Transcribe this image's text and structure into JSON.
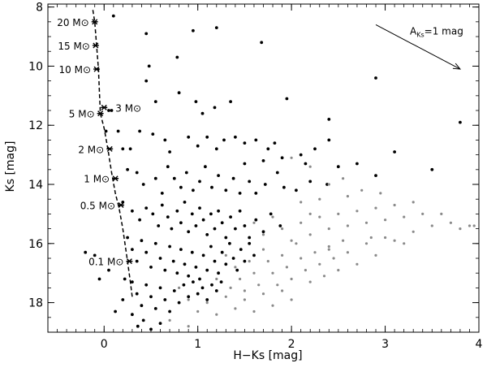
{
  "chart_data": {
    "type": "scatter",
    "title": "",
    "xlabel": "H−Ks [mag]",
    "ylabel": "Ks [mag]",
    "xlim": [
      -0.6,
      4.0
    ],
    "ylim": [
      19.0,
      7.9
    ],
    "y_inverted": true,
    "grid": false,
    "x_ticks": [
      {
        "value": 0,
        "label": "0"
      },
      {
        "value": 1,
        "label": "1"
      },
      {
        "value": 2,
        "label": "2"
      },
      {
        "value": 3,
        "label": "3"
      },
      {
        "value": 4,
        "label": "4"
      }
    ],
    "y_ticks": [
      {
        "value": 8,
        "label": "8"
      },
      {
        "value": 10,
        "label": "10"
      },
      {
        "value": 12,
        "label": "12"
      },
      {
        "value": 14,
        "label": "14"
      },
      {
        "value": 16,
        "label": "16"
      },
      {
        "value": 18,
        "label": "18"
      }
    ],
    "colors": {
      "black_points": "#000000",
      "grey_points": "#8a8a8a",
      "isochrone": "#000000"
    },
    "isochrone": {
      "style": "dashed",
      "x": [
        -0.12,
        -0.1,
        -0.08,
        -0.06,
        -0.04,
        0.0,
        0.04,
        0.08,
        0.12,
        0.16,
        0.2,
        0.25,
        0.28,
        0.3
      ],
      "y": [
        8.1,
        8.5,
        9.3,
        10.1,
        11.6,
        12.1,
        12.8,
        13.6,
        14.3,
        14.8,
        15.5,
        16.6,
        17.3,
        17.8
      ]
    },
    "mass_markers": [
      {
        "label": "20 M⊙",
        "x": -0.1,
        "y": 8.5
      },
      {
        "label": "15 M⊙",
        "x": -0.09,
        "y": 9.3
      },
      {
        "label": "10 M⊙",
        "x": -0.08,
        "y": 10.1
      },
      {
        "label": "5 M⊙",
        "x": -0.04,
        "y": 11.6
      },
      {
        "label": "3 M⊙",
        "x": 0.0,
        "y": 11.4
      },
      {
        "label": "2 M⊙",
        "x": 0.06,
        "y": 12.8
      },
      {
        "label": "1 M⊙",
        "x": 0.12,
        "y": 13.8
      },
      {
        "label": "0.5 M⊙",
        "x": 0.18,
        "y": 14.7
      },
      {
        "label": "0.1 M⊙",
        "x": 0.27,
        "y": 16.6
      }
    ],
    "extinction_vector": {
      "label_main": "A",
      "label_sub": "Ks",
      "label_rest": "=1 mag",
      "x_start": 2.9,
      "y_start": 8.6,
      "x_end": 3.8,
      "y_end": 10.1
    },
    "series": [
      {
        "color": "black",
        "points": [
          [
            0.1,
            8.3
          ],
          [
            0.45,
            8.9
          ],
          [
            0.95,
            8.8
          ],
          [
            1.2,
            8.7
          ],
          [
            1.68,
            9.2
          ],
          [
            0.48,
            10.0
          ],
          [
            0.45,
            10.5
          ],
          [
            0.78,
            9.7
          ],
          [
            0.8,
            10.9
          ],
          [
            0.55,
            11.2
          ],
          [
            0.52,
            12.3
          ],
          [
            0.98,
            11.2
          ],
          [
            1.05,
            11.6
          ],
          [
            1.18,
            11.4
          ],
          [
            1.35,
            11.2
          ],
          [
            1.95,
            11.1
          ],
          [
            2.4,
            11.8
          ],
          [
            2.9,
            10.4
          ],
          [
            3.8,
            11.9
          ],
          [
            0.05,
            11.5
          ],
          [
            0.08,
            11.5
          ],
          [
            0.02,
            12.2
          ],
          [
            0.15,
            12.2
          ],
          [
            0.2,
            12.8
          ],
          [
            0.28,
            12.8
          ],
          [
            0.38,
            12.2
          ],
          [
            0.65,
            12.5
          ],
          [
            0.7,
            12.9
          ],
          [
            0.9,
            12.4
          ],
          [
            1.0,
            12.7
          ],
          [
            1.1,
            12.4
          ],
          [
            1.2,
            12.8
          ],
          [
            1.28,
            12.5
          ],
          [
            1.4,
            12.4
          ],
          [
            1.5,
            12.6
          ],
          [
            1.62,
            12.5
          ],
          [
            1.75,
            12.8
          ],
          [
            1.82,
            12.6
          ],
          [
            1.9,
            13.1
          ],
          [
            2.1,
            13.0
          ],
          [
            2.25,
            12.8
          ],
          [
            2.4,
            12.5
          ],
          [
            2.5,
            13.4
          ],
          [
            2.7,
            13.3
          ],
          [
            2.9,
            13.7
          ],
          [
            3.5,
            13.5
          ],
          [
            3.1,
            12.9
          ],
          [
            0.25,
            13.5
          ],
          [
            0.35,
            13.6
          ],
          [
            0.42,
            14.0
          ],
          [
            0.55,
            13.8
          ],
          [
            0.62,
            14.3
          ],
          [
            0.68,
            13.4
          ],
          [
            0.75,
            13.8
          ],
          [
            0.82,
            14.1
          ],
          [
            0.88,
            13.6
          ],
          [
            0.95,
            14.2
          ],
          [
            1.02,
            13.9
          ],
          [
            1.08,
            13.4
          ],
          [
            1.15,
            14.1
          ],
          [
            1.22,
            13.7
          ],
          [
            1.3,
            14.2
          ],
          [
            1.38,
            13.8
          ],
          [
            1.45,
            14.3
          ],
          [
            1.55,
            13.9
          ],
          [
            1.62,
            14.3
          ],
          [
            1.72,
            14.0
          ],
          [
            1.85,
            13.6
          ],
          [
            1.92,
            14.1
          ],
          [
            2.05,
            14.2
          ],
          [
            2.2,
            13.9
          ],
          [
            2.38,
            14.0
          ],
          [
            2.15,
            13.3
          ],
          [
            1.7,
            13.2
          ],
          [
            1.5,
            13.3
          ],
          [
            0.2,
            14.6
          ],
          [
            0.3,
            14.9
          ],
          [
            0.38,
            15.2
          ],
          [
            0.45,
            14.8
          ],
          [
            0.52,
            15.0
          ],
          [
            0.58,
            15.4
          ],
          [
            0.62,
            14.7
          ],
          [
            0.68,
            15.1
          ],
          [
            0.72,
            15.5
          ],
          [
            0.78,
            14.9
          ],
          [
            0.82,
            15.3
          ],
          [
            0.86,
            14.6
          ],
          [
            0.9,
            15.6
          ],
          [
            0.94,
            15.0
          ],
          [
            0.98,
            15.4
          ],
          [
            1.02,
            14.8
          ],
          [
            1.06,
            15.2
          ],
          [
            1.1,
            15.7
          ],
          [
            1.14,
            15.0
          ],
          [
            1.18,
            15.5
          ],
          [
            1.22,
            14.9
          ],
          [
            1.26,
            15.3
          ],
          [
            1.3,
            15.8
          ],
          [
            1.35,
            15.1
          ],
          [
            1.4,
            15.5
          ],
          [
            1.45,
            14.9
          ],
          [
            1.5,
            15.4
          ],
          [
            1.55,
            15.8
          ],
          [
            1.62,
            15.2
          ],
          [
            1.7,
            15.6
          ],
          [
            1.78,
            15.0
          ],
          [
            1.88,
            15.4
          ],
          [
            0.25,
            15.8
          ],
          [
            0.3,
            16.2
          ],
          [
            0.35,
            16.6
          ],
          [
            0.4,
            15.9
          ],
          [
            0.45,
            16.3
          ],
          [
            0.5,
            16.8
          ],
          [
            0.55,
            16.0
          ],
          [
            0.6,
            16.5
          ],
          [
            0.65,
            16.9
          ],
          [
            0.7,
            16.1
          ],
          [
            0.74,
            16.6
          ],
          [
            0.78,
            17.0
          ],
          [
            0.82,
            16.2
          ],
          [
            0.86,
            16.7
          ],
          [
            0.9,
            17.1
          ],
          [
            0.94,
            16.3
          ],
          [
            0.98,
            16.8
          ],
          [
            1.02,
            17.2
          ],
          [
            1.06,
            16.4
          ],
          [
            1.1,
            16.9
          ],
          [
            1.14,
            16.1
          ],
          [
            1.18,
            16.6
          ],
          [
            1.22,
            17.0
          ],
          [
            1.26,
            16.3
          ],
          [
            1.3,
            16.7
          ],
          [
            1.34,
            16.0
          ],
          [
            1.38,
            16.5
          ],
          [
            1.42,
            16.9
          ],
          [
            1.46,
            16.2
          ],
          [
            1.5,
            16.6
          ],
          [
            1.55,
            16.0
          ],
          [
            1.6,
            16.4
          ],
          [
            0.3,
            17.3
          ],
          [
            0.35,
            17.7
          ],
          [
            0.4,
            18.1
          ],
          [
            0.45,
            17.4
          ],
          [
            0.5,
            17.8
          ],
          [
            0.55,
            18.2
          ],
          [
            0.6,
            17.5
          ],
          [
            0.65,
            17.9
          ],
          [
            0.7,
            18.3
          ],
          [
            0.75,
            17.6
          ],
          [
            0.8,
            18.0
          ],
          [
            0.85,
            17.4
          ],
          [
            0.9,
            17.8
          ],
          [
            0.95,
            17.3
          ],
          [
            1.0,
            17.7
          ],
          [
            1.05,
            17.5
          ],
          [
            1.1,
            17.9
          ],
          [
            1.15,
            17.4
          ],
          [
            1.2,
            17.6
          ],
          [
            1.25,
            17.3
          ],
          [
            0.3,
            18.4
          ],
          [
            0.36,
            18.8
          ],
          [
            0.42,
            18.6
          ],
          [
            0.5,
            18.9
          ],
          [
            0.6,
            18.7
          ],
          [
            0.12,
            18.3
          ],
          [
            0.2,
            17.9
          ],
          [
            0.22,
            17.2
          ],
          [
            -0.1,
            16.4
          ],
          [
            -0.2,
            16.3
          ],
          [
            -0.05,
            17.2
          ],
          [
            0.05,
            16.9
          ]
        ]
      },
      {
        "color": "grey",
        "points": [
          [
            1.3,
            16.4
          ],
          [
            1.4,
            16.8
          ],
          [
            1.45,
            17.2
          ],
          [
            1.5,
            17.6
          ],
          [
            1.55,
            16.6
          ],
          [
            1.6,
            17.0
          ],
          [
            1.65,
            17.4
          ],
          [
            1.7,
            16.2
          ],
          [
            1.75,
            16.6
          ],
          [
            1.8,
            17.0
          ],
          [
            1.85,
            17.4
          ],
          [
            1.9,
            16.4
          ],
          [
            1.95,
            16.8
          ],
          [
            2.0,
            17.2
          ],
          [
            2.05,
            16.0
          ],
          [
            2.1,
            16.5
          ],
          [
            2.15,
            16.9
          ],
          [
            2.2,
            17.3
          ],
          [
            2.25,
            16.3
          ],
          [
            2.3,
            16.7
          ],
          [
            2.35,
            17.1
          ],
          [
            2.4,
            16.1
          ],
          [
            2.45,
            16.5
          ],
          [
            2.5,
            16.9
          ],
          [
            2.55,
            15.9
          ],
          [
            2.6,
            16.3
          ],
          [
            2.7,
            16.7
          ],
          [
            2.8,
            16.0
          ],
          [
            2.9,
            16.4
          ],
          [
            3.0,
            15.8
          ],
          [
            1.6,
            15.3
          ],
          [
            1.7,
            15.7
          ],
          [
            1.8,
            15.1
          ],
          [
            1.9,
            15.5
          ],
          [
            2.0,
            15.9
          ],
          [
            2.1,
            15.3
          ],
          [
            2.2,
            15.7
          ],
          [
            2.3,
            15.1
          ],
          [
            2.4,
            15.5
          ],
          [
            2.5,
            15.0
          ],
          [
            2.6,
            15.4
          ],
          [
            2.7,
            14.9
          ],
          [
            2.8,
            15.3
          ],
          [
            2.9,
            14.8
          ],
          [
            3.0,
            15.2
          ],
          [
            3.1,
            14.7
          ],
          [
            3.2,
            15.1
          ],
          [
            3.3,
            14.6
          ],
          [
            3.4,
            15.0
          ],
          [
            3.5,
            15.4
          ],
          [
            3.6,
            15.0
          ],
          [
            3.7,
            15.3
          ],
          [
            3.8,
            15.5
          ],
          [
            3.9,
            15.4
          ],
          [
            3.95,
            15.4
          ],
          [
            3.3,
            15.6
          ],
          [
            3.1,
            15.9
          ],
          [
            2.6,
            14.4
          ],
          [
            2.3,
            14.5
          ],
          [
            2.1,
            14.6
          ],
          [
            0.8,
            17.5
          ],
          [
            0.9,
            17.9
          ],
          [
            1.0,
            18.3
          ],
          [
            1.1,
            18.0
          ],
          [
            1.2,
            18.4
          ],
          [
            1.3,
            17.8
          ],
          [
            1.4,
            18.2
          ],
          [
            1.5,
            17.9
          ],
          [
            1.6,
            18.3
          ],
          [
            1.7,
            17.7
          ],
          [
            1.8,
            18.1
          ],
          [
            1.9,
            17.6
          ],
          [
            2.0,
            17.9
          ],
          [
            1.2,
            17.2
          ],
          [
            1.35,
            17.5
          ],
          [
            0.7,
            18.6
          ],
          [
            0.9,
            18.8
          ],
          [
            2.0,
            13.1
          ],
          [
            2.2,
            13.4
          ],
          [
            2.4,
            14.0
          ],
          [
            2.55,
            13.8
          ],
          [
            2.75,
            14.2
          ],
          [
            2.95,
            14.3
          ],
          [
            2.85,
            15.8
          ],
          [
            3.2,
            16.0
          ],
          [
            2.4,
            16.2
          ],
          [
            2.2,
            15.0
          ]
        ]
      }
    ]
  }
}
